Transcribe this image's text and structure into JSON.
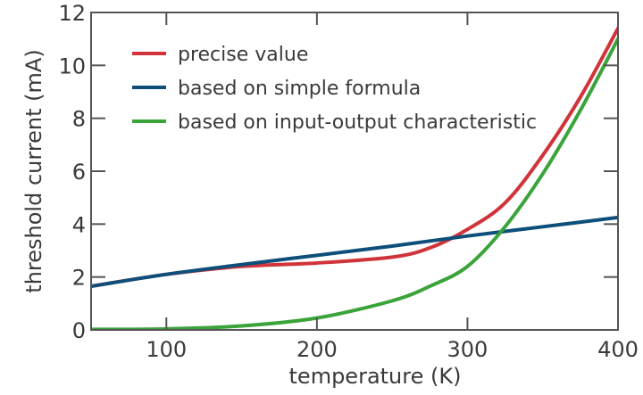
{
  "chart_data": {
    "type": "line",
    "title": "",
    "xlabel": "temperature (K)",
    "ylabel": "threshold current (mA)",
    "xlim": [
      50,
      400
    ],
    "ylim": [
      0,
      12
    ],
    "xticks": [
      100,
      200,
      300,
      400
    ],
    "yticks": [
      0,
      2,
      4,
      6,
      8,
      10,
      12
    ],
    "grid": false,
    "legend_position": "top-left",
    "series": [
      {
        "name": "precise value",
        "color": "#d0343a",
        "x": [
          50,
          100,
          150,
          200,
          250,
          275,
          300,
          325,
          350,
          375,
          400
        ],
        "y": [
          1.65,
          2.1,
          2.4,
          2.53,
          2.75,
          3.1,
          3.8,
          4.8,
          6.6,
          8.8,
          11.4
        ]
      },
      {
        "name": "based on simple formula",
        "color": "#0d4f7a",
        "x": [
          50,
          100,
          150,
          200,
          250,
          300,
          350,
          400
        ],
        "y": [
          1.65,
          2.1,
          2.47,
          2.82,
          3.17,
          3.55,
          3.9,
          4.25
        ]
      },
      {
        "name": "based on input-output characteristic",
        "color": "#3aa33a",
        "x": [
          50,
          100,
          150,
          200,
          250,
          275,
          300,
          325,
          350,
          375,
          400
        ],
        "y": [
          0.02,
          0.04,
          0.15,
          0.45,
          1.1,
          1.65,
          2.4,
          3.9,
          5.9,
          8.3,
          11.0
        ]
      }
    ]
  }
}
